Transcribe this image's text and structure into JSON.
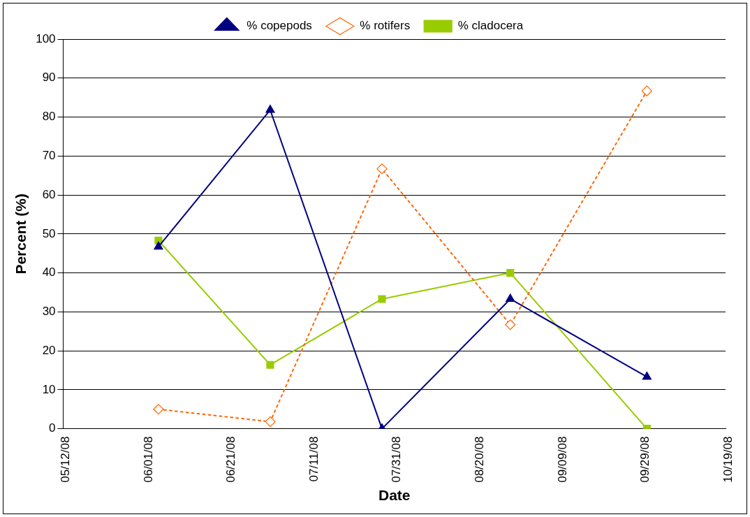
{
  "chart_data": {
    "type": "line",
    "xlabel": "Date",
    "ylabel": "Percent (%)",
    "x": [
      "2008-06-04",
      "2008-07-01",
      "2008-07-28",
      "2008-08-28",
      "2008-09-30"
    ],
    "series": [
      {
        "name": "% copepods",
        "color": "#000080",
        "marker": "triangle",
        "line_style": "solid",
        "values": [
          46.7,
          81.8,
          0,
          33.3,
          13.3
        ]
      },
      {
        "name": "% rotifers",
        "color": "#ff6600",
        "marker": "diamond",
        "line_style": "dotted",
        "values": [
          5.0,
          1.8,
          66.7,
          26.7,
          86.7
        ]
      },
      {
        "name": "% cladocera",
        "color": "#99cc00",
        "marker": "square",
        "line_style": "solid",
        "values": [
          48.3,
          16.4,
          33.3,
          40,
          0
        ]
      }
    ],
    "xlim": [
      "2008-05-12",
      "2008-10-19"
    ],
    "xticks": [
      {
        "value": "2008-05-12",
        "label": "05/12/08"
      },
      {
        "value": "2008-06-01",
        "label": "06/01/08"
      },
      {
        "value": "2008-06-21",
        "label": "06/21/08"
      },
      {
        "value": "2008-07-11",
        "label": "07/11/08"
      },
      {
        "value": "2008-07-31",
        "label": "07/31/08"
      },
      {
        "value": "2008-08-20",
        "label": "08/20/08"
      },
      {
        "value": "2008-09-09",
        "label": "09/09/08"
      },
      {
        "value": "2008-09-29",
        "label": "09/29/08"
      },
      {
        "value": "2008-10-19",
        "label": "10/19/08"
      }
    ],
    "ylim": [
      0,
      100
    ],
    "yticks": [
      0,
      10,
      20,
      30,
      40,
      50,
      60,
      70,
      80,
      90,
      100
    ],
    "grid": "y",
    "legend": "top"
  }
}
